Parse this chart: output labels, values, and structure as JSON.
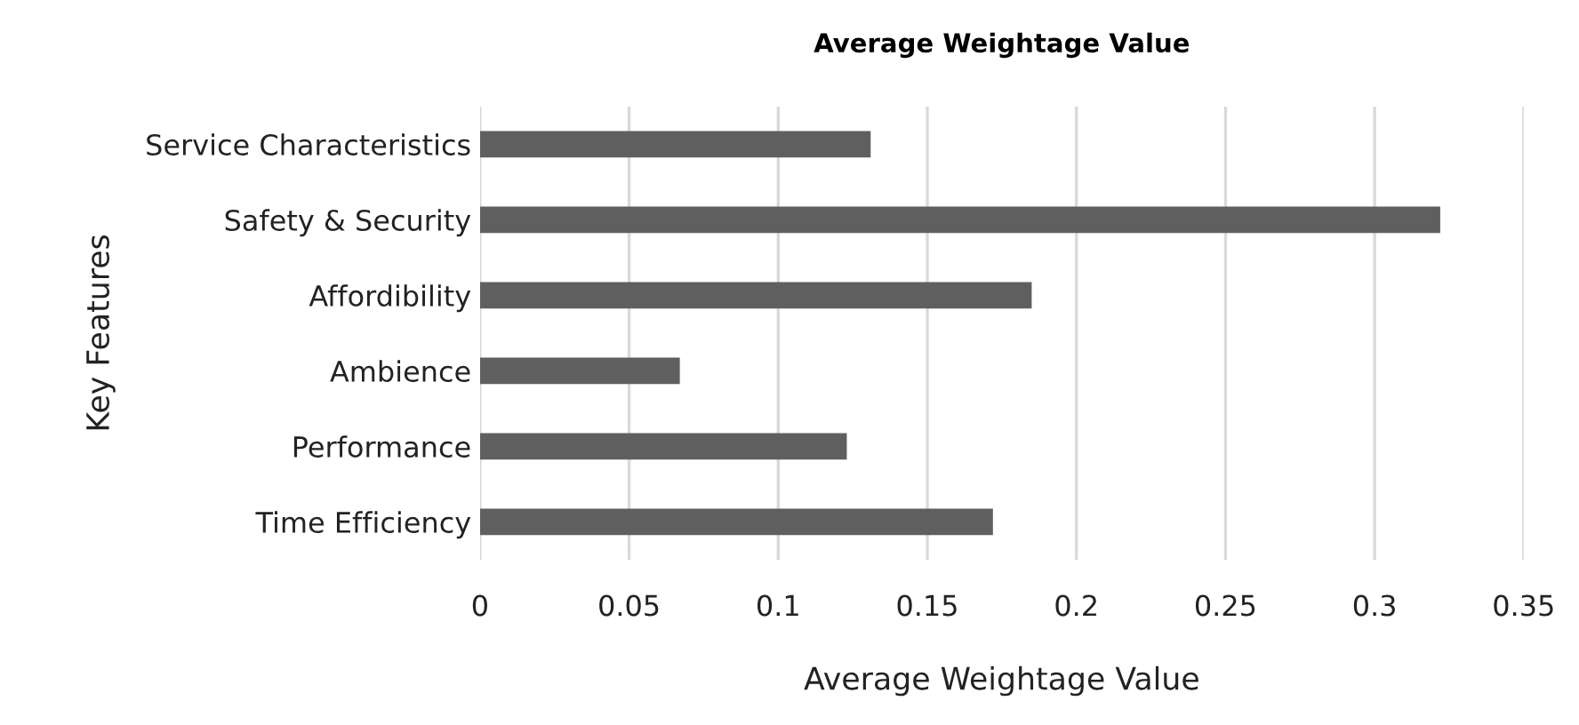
{
  "chart_data": {
    "type": "bar",
    "orientation": "horizontal",
    "title": "Average Weightage Value",
    "xlabel": "Average Weightage Value",
    "ylabel": "Key Features",
    "categories": [
      "Service Characteristics",
      "Safety & Security",
      "Affordibility",
      "Ambience",
      "Performance",
      "Time Efficiency"
    ],
    "values": [
      0.131,
      0.322,
      0.185,
      0.067,
      0.123,
      0.172
    ],
    "color": "#5f5f5f",
    "xlim": [
      0,
      0.35
    ],
    "xticks": [
      0,
      0.05,
      0.1,
      0.15,
      0.2,
      0.25,
      0.3,
      0.35
    ],
    "grid": "x"
  }
}
